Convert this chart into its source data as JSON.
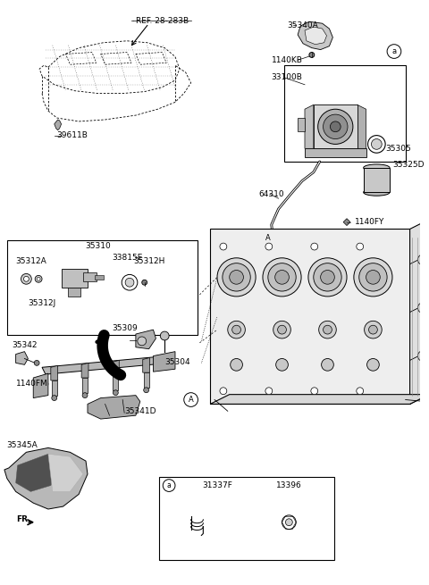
{
  "bg_color": "#ffffff",
  "line_color": "#000000",
  "gray_light": "#d0d0d0",
  "gray_med": "#a0a0a0",
  "gray_dark": "#606060",
  "labels": {
    "ref": "REF. 28-283B",
    "39611B": "39611B",
    "35340A": "35340A",
    "1140KB": "1140KB",
    "33100B": "33100B",
    "35305": "35305",
    "64310": "64310",
    "35325D": "35325D",
    "1140FY": "1140FY",
    "35310": "35310",
    "33815E": "33815E",
    "35312A": "35312A",
    "35312J": "35312J",
    "35312H": "35312H",
    "35342": "35342",
    "35309": "35309",
    "1140FM": "1140FM",
    "35304": "35304",
    "35341D": "35341D",
    "35345A": "35345A",
    "FR": "FR.",
    "31337F": "31337F",
    "13396": "13396"
  },
  "font_size": 6.5
}
